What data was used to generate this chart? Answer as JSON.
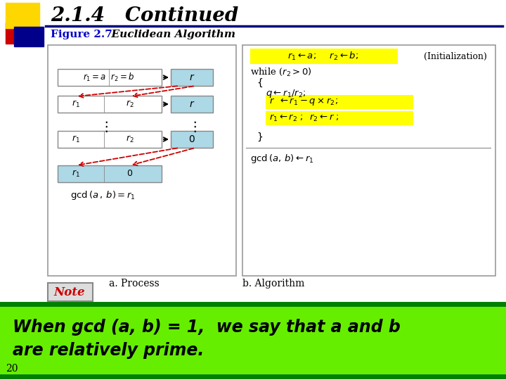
{
  "title": "2.1.4   Continued",
  "figure_label": "Figure 2.7",
  "figure_title": "  Euclidean Algorithm",
  "title_color": "#000000",
  "figure_label_color": "#0000CC",
  "figure_title_color": "#000000",
  "bg_color": "#ffffff",
  "left_box_bg": "#add8e6",
  "yellow_bg": "#ffff00",
  "green_bg": "#66ee00",
  "dark_green": "#008000",
  "note_text_color": "#cc0000",
  "page_number": "20",
  "note_label": "Note",
  "bottom_text_line1": "When gcd (a, b) = 1,  we say that a and b",
  "bottom_text_line2": "are relatively prime.",
  "process_label": "a. Process",
  "algorithm_label": "b. Algorithm",
  "decoration_yellow": "#FFD700",
  "decoration_red": "#CC0000",
  "decoration_blue": "#00008B"
}
